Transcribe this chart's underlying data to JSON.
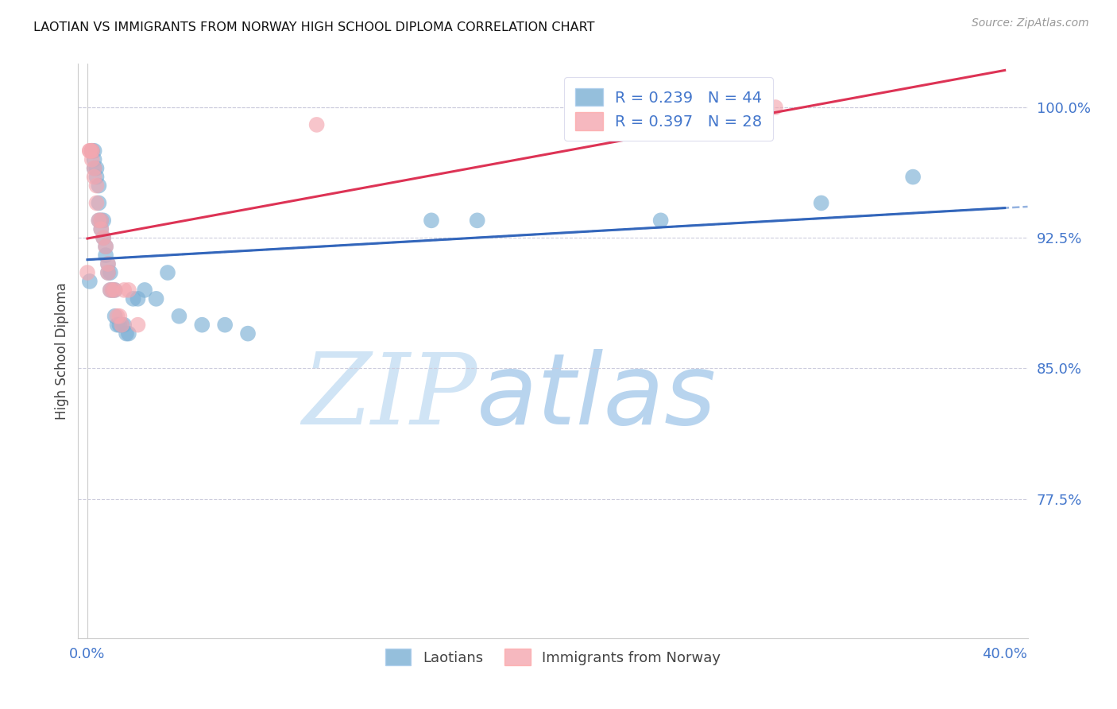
{
  "title": "LAOTIAN VS IMMIGRANTS FROM NORWAY HIGH SCHOOL DIPLOMA CORRELATION CHART",
  "source": "Source: ZipAtlas.com",
  "ylabel": "High School Diploma",
  "ylim": [
    0.695,
    1.025
  ],
  "xlim": [
    -0.004,
    0.41
  ],
  "ytick_vals": [
    0.775,
    0.85,
    0.925,
    1.0
  ],
  "ytick_labels": [
    "77.5%",
    "85.0%",
    "92.5%",
    "100.0%"
  ],
  "xtick_vals": [
    0.0,
    0.4
  ],
  "xtick_labels": [
    "0.0%",
    "40.0%"
  ],
  "legend_blue_r": "R = 0.239",
  "legend_blue_n": "N = 44",
  "legend_pink_r": "R = 0.397",
  "legend_pink_n": "N = 28",
  "blue_color": "#7BAFD4",
  "pink_color": "#F4A7B0",
  "line_blue_color": "#3366BB",
  "line_pink_color": "#DD3355",
  "dashed_line_color": "#88AADD",
  "blue_scatter_x": [
    0.001,
    0.002,
    0.002,
    0.003,
    0.003,
    0.003,
    0.004,
    0.004,
    0.005,
    0.005,
    0.005,
    0.006,
    0.006,
    0.007,
    0.007,
    0.008,
    0.008,
    0.009,
    0.009,
    0.01,
    0.01,
    0.011,
    0.012,
    0.012,
    0.013,
    0.014,
    0.015,
    0.016,
    0.017,
    0.018,
    0.02,
    0.022,
    0.025,
    0.03,
    0.035,
    0.04,
    0.05,
    0.06,
    0.07,
    0.15,
    0.17,
    0.25,
    0.32,
    0.36
  ],
  "blue_scatter_y": [
    0.9,
    0.975,
    0.975,
    0.975,
    0.97,
    0.965,
    0.965,
    0.96,
    0.955,
    0.945,
    0.935,
    0.935,
    0.93,
    0.935,
    0.925,
    0.92,
    0.915,
    0.91,
    0.905,
    0.905,
    0.895,
    0.895,
    0.895,
    0.88,
    0.875,
    0.875,
    0.875,
    0.875,
    0.87,
    0.87,
    0.89,
    0.89,
    0.895,
    0.89,
    0.905,
    0.88,
    0.875,
    0.875,
    0.87,
    0.935,
    0.935,
    0.935,
    0.945,
    0.96
  ],
  "pink_scatter_x": [
    0.0,
    0.001,
    0.001,
    0.002,
    0.002,
    0.002,
    0.003,
    0.003,
    0.004,
    0.004,
    0.005,
    0.006,
    0.006,
    0.007,
    0.008,
    0.009,
    0.009,
    0.01,
    0.011,
    0.012,
    0.013,
    0.014,
    0.015,
    0.016,
    0.018,
    0.022,
    0.1,
    0.3
  ],
  "pink_scatter_y": [
    0.905,
    0.975,
    0.975,
    0.975,
    0.975,
    0.97,
    0.965,
    0.96,
    0.955,
    0.945,
    0.935,
    0.935,
    0.93,
    0.925,
    0.92,
    0.91,
    0.905,
    0.895,
    0.895,
    0.895,
    0.88,
    0.88,
    0.875,
    0.895,
    0.895,
    0.875,
    0.99,
    1.0
  ],
  "watermark_zip": "ZIP",
  "watermark_atlas": "atlas",
  "legend_label_blue": "Laotians",
  "legend_label_pink": "Immigrants from Norway",
  "axis_color": "#4477CC",
  "background_color": "#FFFFFF",
  "grid_color": "#CCCCDD",
  "spine_color": "#CCCCCC"
}
